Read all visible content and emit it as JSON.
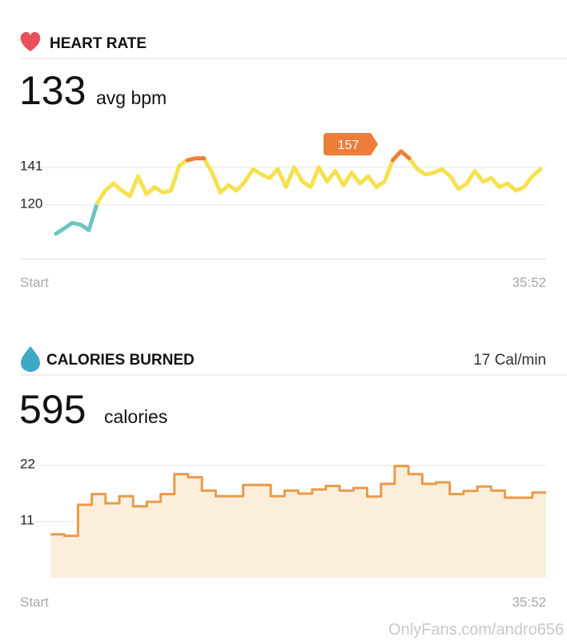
{
  "chart_data": [
    {
      "type": "line",
      "title": "HEART RATE",
      "summary_value": 133,
      "summary_unit": "avg bpm",
      "annotation": "157",
      "x_labels": [
        "Start",
        "35:52"
      ],
      "ylim": [
        90,
        157
      ],
      "yticks": [
        120,
        141
      ],
      "grid": true,
      "series": [
        {
          "color": "#6cc4c0",
          "values": [
            104,
            107,
            110,
            109,
            106,
            121,
            null,
            null,
            null,
            null,
            null,
            null,
            null,
            null,
            null,
            null,
            null,
            null,
            null,
            null,
            null,
            null,
            null,
            null,
            null,
            null,
            null,
            null,
            null,
            null,
            null,
            null,
            null,
            null,
            null,
            null,
            null,
            null,
            null,
            null,
            null,
            null,
            null,
            null,
            null,
            null,
            null,
            null,
            null,
            null,
            null,
            null,
            null,
            null,
            null,
            null,
            null,
            null,
            null,
            null
          ]
        },
        {
          "color": "#f5e050",
          "values": [
            null,
            null,
            null,
            null,
            null,
            121,
            128,
            132,
            128,
            125,
            136,
            126,
            130,
            127,
            128,
            142,
            145,
            null,
            146,
            138,
            127,
            131,
            128,
            133,
            140,
            137,
            135,
            140,
            130,
            141,
            133,
            130,
            141,
            133,
            139,
            131,
            138,
            132,
            136,
            130,
            133,
            145,
            null,
            146,
            140,
            137,
            138,
            140,
            136,
            129,
            132,
            139,
            133,
            135,
            130,
            132,
            128,
            130,
            136,
            140
          ]
        },
        {
          "color": "#ef7d3a",
          "values": [
            null,
            null,
            null,
            null,
            null,
            null,
            null,
            null,
            null,
            null,
            null,
            null,
            null,
            null,
            null,
            null,
            145,
            146,
            146,
            null,
            null,
            null,
            null,
            null,
            null,
            null,
            null,
            null,
            null,
            null,
            null,
            null,
            null,
            null,
            null,
            null,
            null,
            null,
            null,
            null,
            null,
            145,
            150,
            146,
            null,
            null,
            null,
            null,
            null,
            null,
            null,
            null,
            null,
            null,
            null,
            null,
            null,
            null,
            null,
            null
          ]
        }
      ]
    },
    {
      "type": "step",
      "title": "CALORIES BURNED",
      "rate_label": "17 Cal/min",
      "summary_value": 595,
      "summary_unit": "calories",
      "x_labels": [
        "Start",
        "35:52"
      ],
      "ylim": [
        0,
        22
      ],
      "yticks": [
        11,
        22
      ],
      "grid": true,
      "color": "#ea9a4a",
      "fill": "#fbefdc",
      "values": [
        8.5,
        8.2,
        14.3,
        16.4,
        14.6,
        16.0,
        14.0,
        14.9,
        16.4,
        20.3,
        19.7,
        17.1,
        16.0,
        16.0,
        18.2,
        18.2,
        16.0,
        17.1,
        16.5,
        17.3,
        18.0,
        17.1,
        17.6,
        15.9,
        18.4,
        21.9,
        20.3,
        18.4,
        18.7,
        16.4,
        17.0,
        17.9,
        17.1,
        15.7,
        15.7,
        16.7
      ]
    }
  ],
  "watermark": "OnlyFans.com/andro656"
}
